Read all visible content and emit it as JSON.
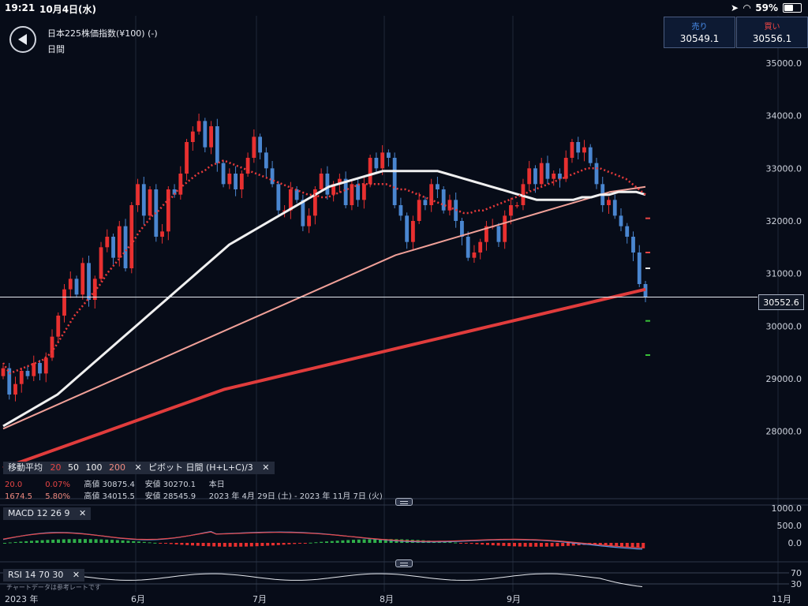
{
  "status_bar": {
    "time": "19:21",
    "date": "10月4日(水)",
    "battery": "59%",
    "battery_level": 0.59
  },
  "header": {
    "instrument": "日本225株価指数(¥100) (-)",
    "timeframe": "日間",
    "sell": {
      "label": "売り",
      "value": "30549.1"
    },
    "buy": {
      "label": "買い",
      "value": "30556.1"
    }
  },
  "chart_data": {
    "type": "candlestick",
    "ylim": [
      27500,
      35300
    ],
    "y_ticks": [
      "35000.0",
      "34000.0",
      "33000.0",
      "32000.0",
      "31000.0",
      "30000.0",
      "29000.0",
      "28000.0"
    ],
    "x_labels": [
      "2023 年",
      "6月",
      "7月",
      "8月",
      "9月",
      "11月"
    ],
    "current_price_label": "30552.6",
    "current_price": 30552.6,
    "closes": [
      29200,
      28700,
      28900,
      29150,
      29050,
      29300,
      29100,
      29400,
      29800,
      30200,
      30700,
      30900,
      30600,
      31200,
      30500,
      30900,
      31500,
      31700,
      31300,
      31900,
      31100,
      32300,
      32700,
      32100,
      32600,
      31700,
      31800,
      32600,
      32500,
      32900,
      33500,
      33700,
      33900,
      33400,
      33800,
      33100,
      32700,
      32900,
      32600,
      32900,
      33200,
      33600,
      33300,
      33000,
      32700,
      32200,
      32200,
      32600,
      32400,
      31900,
      32100,
      32600,
      32900,
      32500,
      32700,
      32800,
      32300,
      32700,
      32400,
      32700,
      33200,
      33000,
      33300,
      33200,
      32300,
      32100,
      31600,
      32000,
      32400,
      32300,
      32700,
      32600,
      32200,
      32400,
      32000,
      31700,
      31300,
      31400,
      31600,
      31900,
      31900,
      31600,
      32100,
      32300,
      32300,
      32700,
      33000,
      32700,
      33100,
      32800,
      32900,
      32800,
      33200,
      33500,
      33300,
      33400,
      33100,
      32700,
      32300,
      32400,
      32100,
      31900,
      31700,
      31400,
      30800,
      30550
    ],
    "ma20": [
      29300,
      29100,
      29150,
      29200,
      29250,
      29300,
      29350,
      29450,
      29600,
      29800,
      30000,
      30200,
      30350,
      30500,
      30650,
      30800,
      31000,
      31150,
      31300,
      31450,
      31600,
      31800,
      31950,
      32100,
      32200,
      32350,
      32450,
      32600,
      32700,
      32800,
      32900,
      32950,
      33050,
      33100,
      33150,
      33100,
      33050,
      33000,
      32950,
      32900,
      32850,
      32800,
      32750,
      32700,
      32650,
      32600,
      32550,
      32500,
      32500,
      32450,
      32450,
      32500,
      32550,
      32600,
      32650,
      32700,
      32700,
      32700,
      32700,
      32700,
      32650,
      32600,
      32600,
      32550,
      32500,
      32450,
      32400,
      32350,
      32300,
      32250,
      32200,
      32150,
      32150,
      32200,
      32200,
      32250,
      32300,
      32350,
      32400,
      32450,
      32500,
      32550,
      32600,
      32650,
      32700,
      32750,
      32800,
      32850,
      32900,
      32950,
      33000,
      33000,
      33000,
      32950,
      32900,
      32850,
      32800,
      32700,
      32600,
      32500
    ],
    "ma50": [
      28100,
      28200,
      28300,
      28400,
      28500,
      28600,
      28700,
      28850,
      29000,
      29150,
      29300,
      29450,
      29600,
      29750,
      29900,
      30050,
      30200,
      30350,
      30500,
      30650,
      30800,
      30950,
      31100,
      31250,
      31400,
      31550,
      31650,
      31750,
      31850,
      31950,
      32050,
      32150,
      32250,
      32350,
      32450,
      32550,
      32650,
      32700,
      32750,
      32800,
      32850,
      32900,
      32950,
      32950,
      32950,
      32950,
      32950,
      32950,
      32950,
      32900,
      32850,
      32800,
      32750,
      32700,
      32650,
      32600,
      32550,
      32500,
      32450,
      32400,
      32400,
      32400,
      32400,
      32400,
      32450,
      32450,
      32500,
      32500,
      32550,
      32550,
      32550,
      32500
    ],
    "ma100": [
      28050,
      28200,
      28350,
      28500,
      28650,
      28800,
      28950,
      29100,
      29250,
      29400,
      29550,
      29700,
      29850,
      30000,
      30150,
      30300,
      30450,
      30600,
      30750,
      30900,
      31050,
      31200,
      31350,
      31450,
      31550,
      31650,
      31750,
      31850,
      31950,
      32050,
      32150,
      32250,
      32350,
      32450,
      32550,
      32600,
      32650
    ],
    "ma200": [
      27300,
      27450,
      27600,
      27750,
      27900,
      28050,
      28200,
      28350,
      28500,
      28650,
      28800,
      28900,
      29000,
      29100,
      29200,
      29300,
      29400,
      29500,
      29600,
      29700,
      29800,
      29900,
      30000,
      30100,
      30200,
      30300,
      30400,
      30500,
      30600,
      30700
    ]
  },
  "legends": {
    "ma": {
      "title": "移動平均",
      "p1": "20",
      "p2": "50",
      "p3": "100",
      "p4": "200"
    },
    "pivot": {
      "title": "ピボット  日間  (H+L+C)/3"
    },
    "row1": {
      "a": "20.0",
      "b": "0.07%",
      "high_label": "高値 30875.4",
      "low_label": "安値 30270.1",
      "period": "本日"
    },
    "row2": {
      "a": "1674.5",
      "b": "5.80%",
      "high_label": "高値 34015.5",
      "low_label": "安値 28545.9",
      "period": "2023 年 4月 29日 (土) - 2023 年 11月 7日 (火)"
    },
    "macd": {
      "title": "MACD  12  26  9"
    },
    "rsi": {
      "title": "RSI  14  70  30"
    }
  },
  "macd_axis": [
    "1000.0",
    "500.0",
    "0.0"
  ],
  "rsi_axis": [
    "70",
    "30"
  ],
  "disclaimer": "チャートデータは参考レートです",
  "colors": {
    "up": "#e83030",
    "down": "#4a86d0",
    "ma20": "#e83a3a",
    "ma50": "#f0f0f0",
    "ma100": "#f0a098",
    "ma200": "#e03c3c"
  }
}
